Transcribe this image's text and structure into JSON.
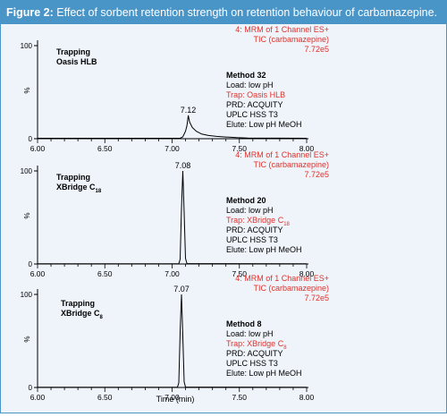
{
  "caption": {
    "label": "Figure 2:",
    "text": "Effect of sorbent retention strength on retention behaviour of carbamazepine."
  },
  "colors": {
    "accent": "#4a95c8",
    "red_text": "#e0312b",
    "trace": "#000000"
  },
  "shared_xlabel": "Time (min)",
  "chart_data": [
    {
      "type": "line",
      "ylabel": "%",
      "xlim": [
        6.0,
        8.0
      ],
      "ylim": [
        0,
        100
      ],
      "xticks": [
        "6.00",
        "6.50",
        "7.00",
        "7.50",
        "8.00"
      ],
      "yticks": [
        "0",
        "100"
      ],
      "peak": {
        "x": 7.12,
        "y": 25,
        "label": "7.12"
      },
      "title_lines": [
        "Trapping",
        "Oasis HLB"
      ],
      "header_lines": [
        "4: MRM of 1 Channel ES+",
        "TIC (carbamazepine)",
        "7.72e5"
      ],
      "method_title": "Method 32",
      "method_lines": [
        "Load: low pH",
        "Trap: Oasis HLB",
        "PRD: ACQUITY",
        "UPLC HSS T3",
        "Elute: Low pH MeOH"
      ],
      "series": [
        {
          "x": [
            6.0,
            7.06,
            7.08,
            7.1,
            7.11,
            7.12,
            7.13,
            7.15,
            7.18,
            7.22,
            7.27,
            7.33,
            7.4,
            7.48,
            7.56,
            8.0
          ],
          "y": [
            0.5,
            0.5,
            2,
            8,
            14,
            25,
            18,
            12,
            8,
            5,
            3.5,
            2.5,
            1.8,
            1.2,
            0.8,
            0.5
          ]
        }
      ]
    },
    {
      "type": "line",
      "ylabel": "%",
      "xlim": [
        6.0,
        8.0
      ],
      "ylim": [
        0,
        100
      ],
      "xticks": [
        "6.00",
        "6.50",
        "7.00",
        "7.50",
        "8.00"
      ],
      "yticks": [
        "0",
        "100"
      ],
      "peak": {
        "x": 7.08,
        "y": 100,
        "label": "7.08"
      },
      "title_lines": [
        "Trapping",
        "XBridge C18"
      ],
      "header_lines": [
        "4: MRM of 1 Channel ES+",
        "TIC (carbamazepine)",
        "7.72e5"
      ],
      "method_title": "Method 20",
      "method_lines": [
        "Load: low pH",
        "Trap: XBridge C18",
        "PRD: ACQUITY",
        "UPLC HSS T3",
        "Elute: Low pH MeOH"
      ],
      "series": [
        {
          "x": [
            6.0,
            7.05,
            7.06,
            7.07,
            7.08,
            7.09,
            7.1,
            7.11,
            8.0
          ],
          "y": [
            0.3,
            0.3,
            5,
            60,
            100,
            55,
            6,
            0.5,
            0.3
          ]
        }
      ]
    },
    {
      "type": "line",
      "ylabel": "%",
      "xlim": [
        6.0,
        8.0
      ],
      "ylim": [
        0,
        100
      ],
      "xticks": [
        "6.00",
        "6.50",
        "7.00",
        "7.50",
        "8.00"
      ],
      "yticks": [
        "0",
        "100"
      ],
      "peak": {
        "x": 7.07,
        "y": 100,
        "label": "7.07"
      },
      "title_lines": [
        "Trapping",
        "XBridge C8"
      ],
      "header_lines": [
        "4: MRM of 1 Channel ES+",
        "TIC (carbamazepine)",
        "7.72e5"
      ],
      "method_title": "Method 8",
      "method_lines": [
        "Load: low pH",
        "Trap: XBridge C8",
        "PRD: ACQUITY",
        "UPLC HSS T3",
        "Elute: Low pH MeOH"
      ],
      "series": [
        {
          "x": [
            6.0,
            7.04,
            7.05,
            7.06,
            7.07,
            7.08,
            7.09,
            7.1,
            8.0
          ],
          "y": [
            0.3,
            0.3,
            5,
            60,
            100,
            55,
            6,
            0.5,
            0.3
          ]
        }
      ]
    }
  ]
}
